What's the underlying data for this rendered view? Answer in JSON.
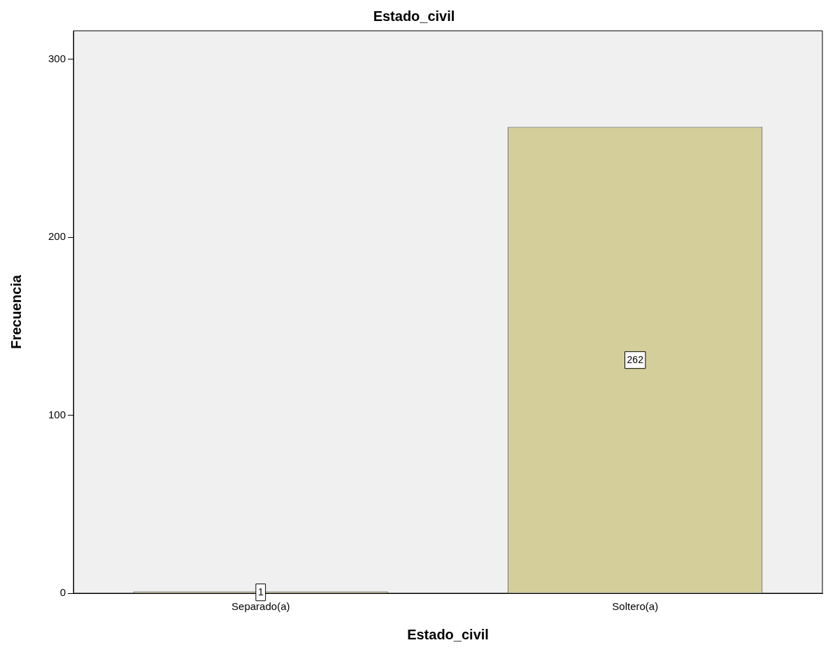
{
  "chart_data": {
    "type": "bar",
    "title": "Estado_civil",
    "xlabel": "Estado_civil",
    "ylabel": "Frecuencia",
    "categories": [
      "Separado(a)",
      "Soltero(a)"
    ],
    "values": [
      1,
      262
    ],
    "color": "#d3ce9a",
    "ylim": [
      0,
      316
    ],
    "yticks": [
      0,
      100,
      200,
      300
    ],
    "grid": false,
    "legend": false,
    "data_labels": true
  }
}
